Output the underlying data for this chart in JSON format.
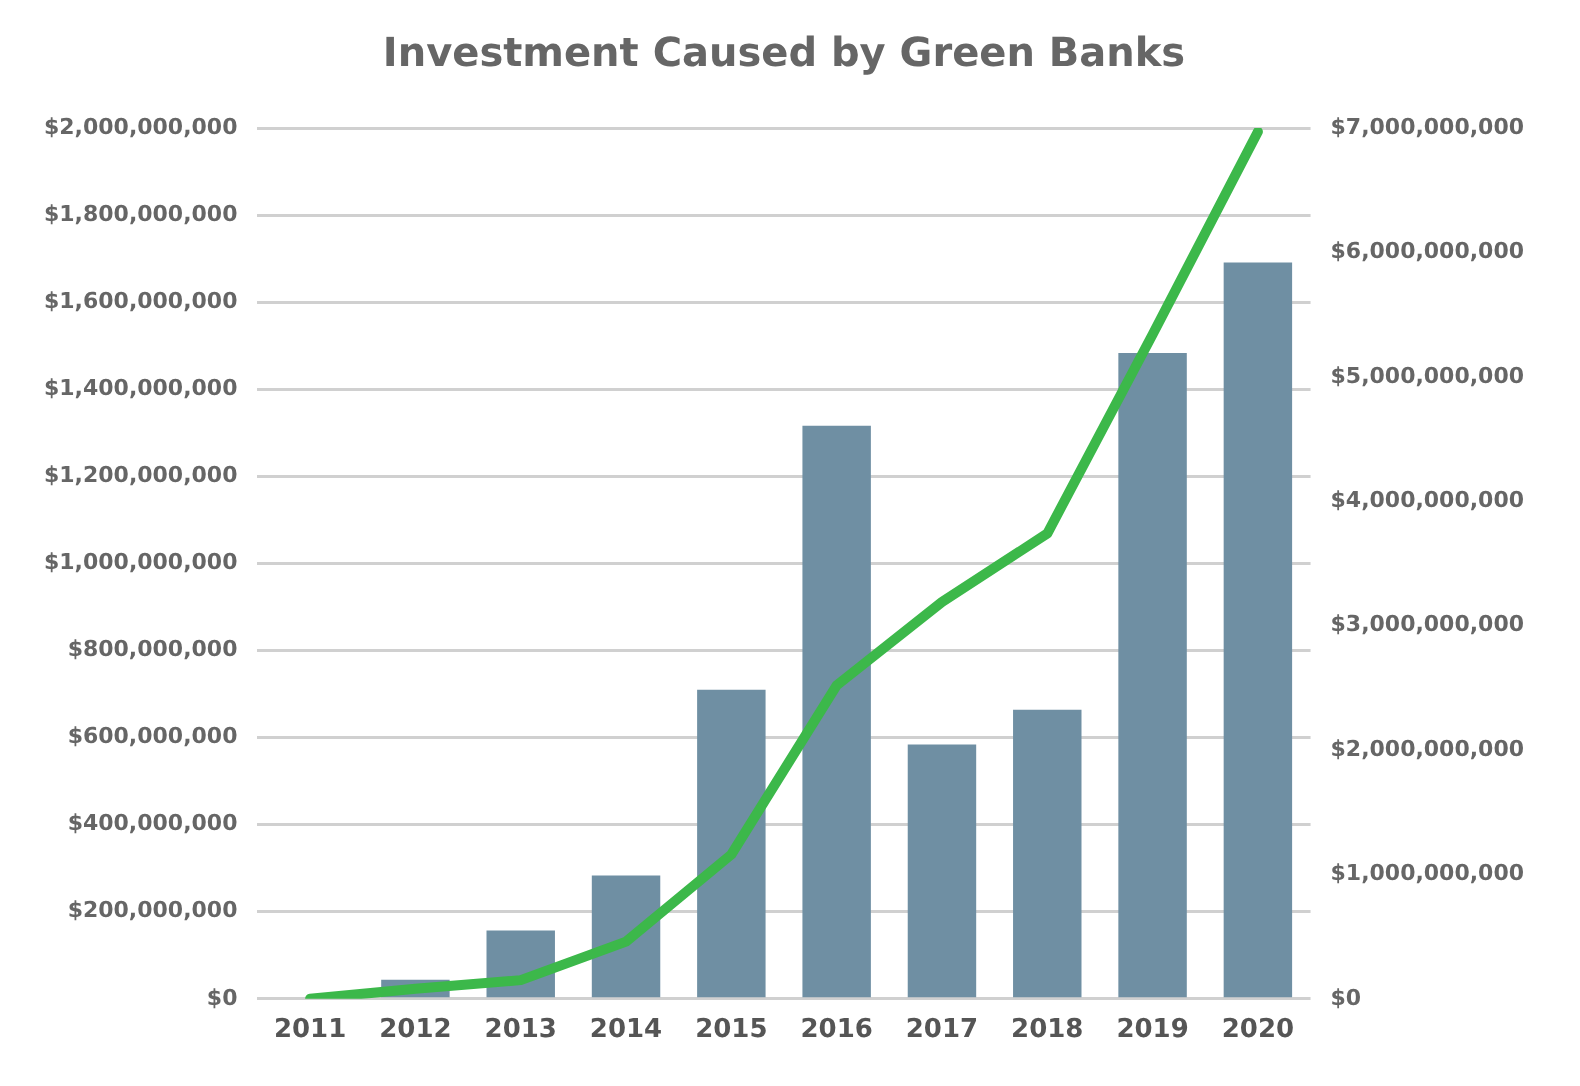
{
  "chart_data": {
    "type": "bar",
    "title": "Investment Caused by Green Banks",
    "categories": [
      "2011",
      "2012",
      "2013",
      "2014",
      "2015",
      "2016",
      "2017",
      "2018",
      "2019",
      "2020"
    ],
    "series": [
      {
        "color": "#6f8fa3",
        "values": [
          0,
          44000000,
          157000000,
          283000000,
          710000000,
          1316000000,
          584000000,
          664000000,
          1483000000,
          1691000000
        ]
      },
      {
        "type": "line",
        "axis": "y2",
        "color": "#3cb84a",
        "values": [
          0,
          80000000,
          150000000,
          460000000,
          1160000000,
          2520000000,
          3190000000,
          3740000000,
          5340000000,
          6970000000
        ]
      }
    ],
    "ylim": [
      0,
      2000000000
    ],
    "yticks": [
      {
        "value": 0,
        "label": "$0"
      },
      {
        "value": 200000000,
        "label": "$200,000,000"
      },
      {
        "value": 400000000,
        "label": "$400,000,000"
      },
      {
        "value": 600000000,
        "label": "$600,000,000"
      },
      {
        "value": 800000000,
        "label": "$800,000,000"
      },
      {
        "value": 1000000000,
        "label": "$1,000,000,000"
      },
      {
        "value": 1200000000,
        "label": "$1,200,000,000"
      },
      {
        "value": 1400000000,
        "label": "$1,400,000,000"
      },
      {
        "value": 1600000000,
        "label": "$1,600,000,000"
      },
      {
        "value": 1800000000,
        "label": "$1,800,000,000"
      },
      {
        "value": 2000000000,
        "label": "$2,000,000,000"
      }
    ],
    "y2lim": [
      0,
      7000000000
    ],
    "y2ticks": [
      {
        "value": 0,
        "label": "$0"
      },
      {
        "value": 1000000000,
        "label": "$1,000,000,000"
      },
      {
        "value": 2000000000,
        "label": "$2,000,000,000"
      },
      {
        "value": 3000000000,
        "label": "$3,000,000,000"
      },
      {
        "value": 4000000000,
        "label": "$4,000,000,000"
      },
      {
        "value": 5000000000,
        "label": "$5,000,000,000"
      },
      {
        "value": 6000000000,
        "label": "$6,000,000,000"
      },
      {
        "value": 7000000000,
        "label": "$7,000,000,000"
      }
    ],
    "grid": "y",
    "legend": false,
    "marker": "none"
  }
}
